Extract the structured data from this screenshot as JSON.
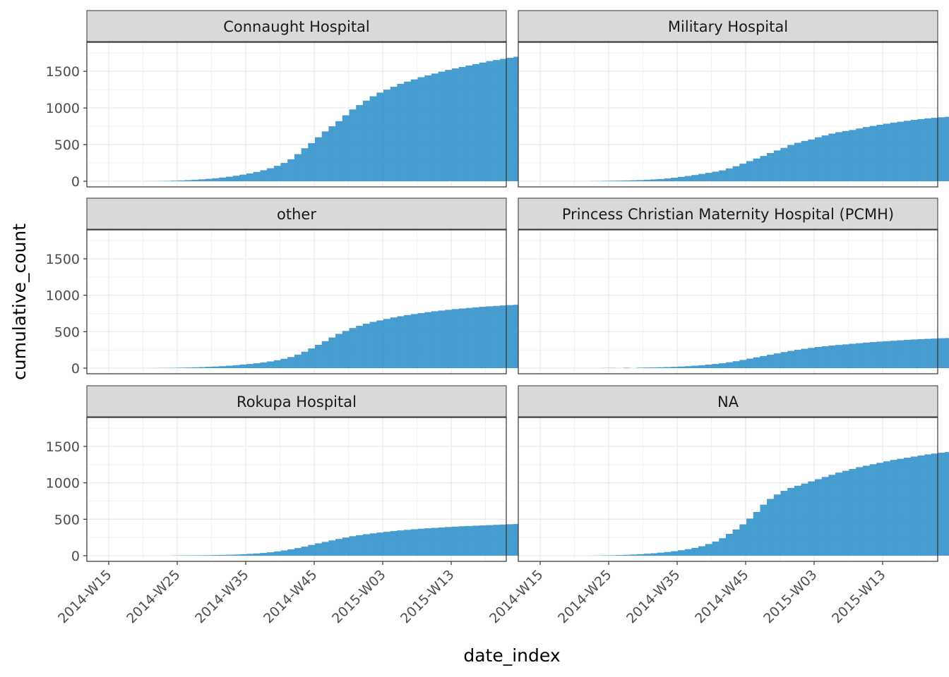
{
  "chart_data": {
    "type": "bar",
    "xlabel": "date_index",
    "ylabel": "cumulative_count",
    "ylim": [
      0,
      1800
    ],
    "y_ticks": [
      "0",
      "500",
      "1000",
      "1500"
    ],
    "x_ticks": [
      "2014-W15",
      "2014-W25",
      "2014-W35",
      "2014-W45",
      "2015-W03",
      "2015-W13"
    ],
    "grid": true,
    "bar_color": "#2e8fca",
    "strip_fill": "#d9d9d9",
    "panels": [
      {
        "title": "Connaught Hospital",
        "values": [
          0,
          0,
          0,
          0,
          0,
          1,
          2,
          3,
          5,
          8,
          11,
          15,
          20,
          26,
          33,
          41,
          51,
          62,
          75,
          90,
          107,
          127,
          150,
          177,
          210,
          250,
          300,
          370,
          450,
          520,
          600,
          680,
          750,
          820,
          900,
          980,
          1040,
          1100,
          1160,
          1210,
          1250,
          1290,
          1330,
          1360,
          1390,
          1420,
          1445,
          1470,
          1495,
          1520,
          1540,
          1560,
          1580,
          1600,
          1620,
          1640,
          1655,
          1670,
          1685,
          1700,
          1710,
          1718,
          1725
        ]
      },
      {
        "title": "Military Hospital",
        "values": [
          0,
          0,
          0,
          0,
          0,
          0,
          0,
          2,
          3,
          5,
          7,
          9,
          11,
          13,
          16,
          20,
          25,
          30,
          38,
          48,
          60,
          72,
          85,
          100,
          115,
          130,
          148,
          175,
          205,
          240,
          275,
          310,
          345,
          385,
          420,
          455,
          495,
          525,
          550,
          570,
          600,
          625,
          650,
          670,
          685,
          700,
          720,
          740,
          755,
          770,
          785,
          800,
          812,
          825,
          838,
          848,
          858,
          866,
          873,
          880,
          885,
          890,
          893
        ]
      },
      {
        "title": "other",
        "values": [
          0,
          0,
          0,
          0,
          0,
          0,
          1,
          2,
          3,
          4,
          6,
          8,
          11,
          14,
          18,
          22,
          27,
          33,
          40,
          48,
          57,
          67,
          78,
          92,
          108,
          128,
          152,
          185,
          225,
          270,
          320,
          370,
          420,
          470,
          510,
          550,
          580,
          610,
          635,
          655,
          675,
          695,
          712,
          728,
          742,
          755,
          768,
          780,
          790,
          800,
          810,
          818,
          826,
          834,
          842,
          848,
          854,
          860,
          865,
          870,
          874,
          877,
          880
        ]
      },
      {
        "title": "Princess Christian Maternity Hospital (PCMH)",
        "values": [
          0,
          0,
          0,
          0,
          0,
          0,
          0,
          0,
          0,
          2,
          3,
          0,
          5,
          0,
          6,
          8,
          10,
          12,
          15,
          18,
          22,
          27,
          33,
          40,
          48,
          57,
          67,
          80,
          95,
          112,
          130,
          148,
          166,
          184,
          202,
          220,
          236,
          252,
          266,
          278,
          290,
          300,
          310,
          318,
          326,
          334,
          342,
          350,
          357,
          364,
          370,
          376,
          382,
          388,
          393,
          398,
          402,
          406,
          410,
          413,
          416,
          418,
          420
        ]
      },
      {
        "title": "Rokupa Hospital",
        "values": [
          0,
          0,
          0,
          0,
          0,
          0,
          0,
          0,
          0,
          2,
          3,
          4,
          5,
          6,
          7,
          9,
          11,
          13,
          16,
          20,
          25,
          31,
          38,
          47,
          58,
          72,
          88,
          105,
          125,
          148,
          170,
          190,
          210,
          230,
          250,
          268,
          282,
          295,
          307,
          318,
          328,
          338,
          347,
          355,
          363,
          370,
          376,
          382,
          388,
          394,
          399,
          404,
          408,
          412,
          416,
          420,
          424,
          428,
          432,
          436,
          440,
          444,
          448
        ]
      },
      {
        "title": "NA",
        "values": [
          0,
          0,
          0,
          0,
          0,
          0,
          0,
          1,
          2,
          4,
          6,
          9,
          12,
          16,
          21,
          27,
          34,
          42,
          51,
          62,
          75,
          90,
          108,
          130,
          160,
          195,
          240,
          300,
          360,
          430,
          510,
          600,
          700,
          780,
          840,
          890,
          930,
          960,
          990,
          1020,
          1050,
          1080,
          1110,
          1140,
          1165,
          1190,
          1215,
          1235,
          1255,
          1275,
          1295,
          1315,
          1330,
          1345,
          1360,
          1375,
          1390,
          1402,
          1414,
          1424,
          1434,
          1442,
          1450
        ]
      }
    ]
  }
}
